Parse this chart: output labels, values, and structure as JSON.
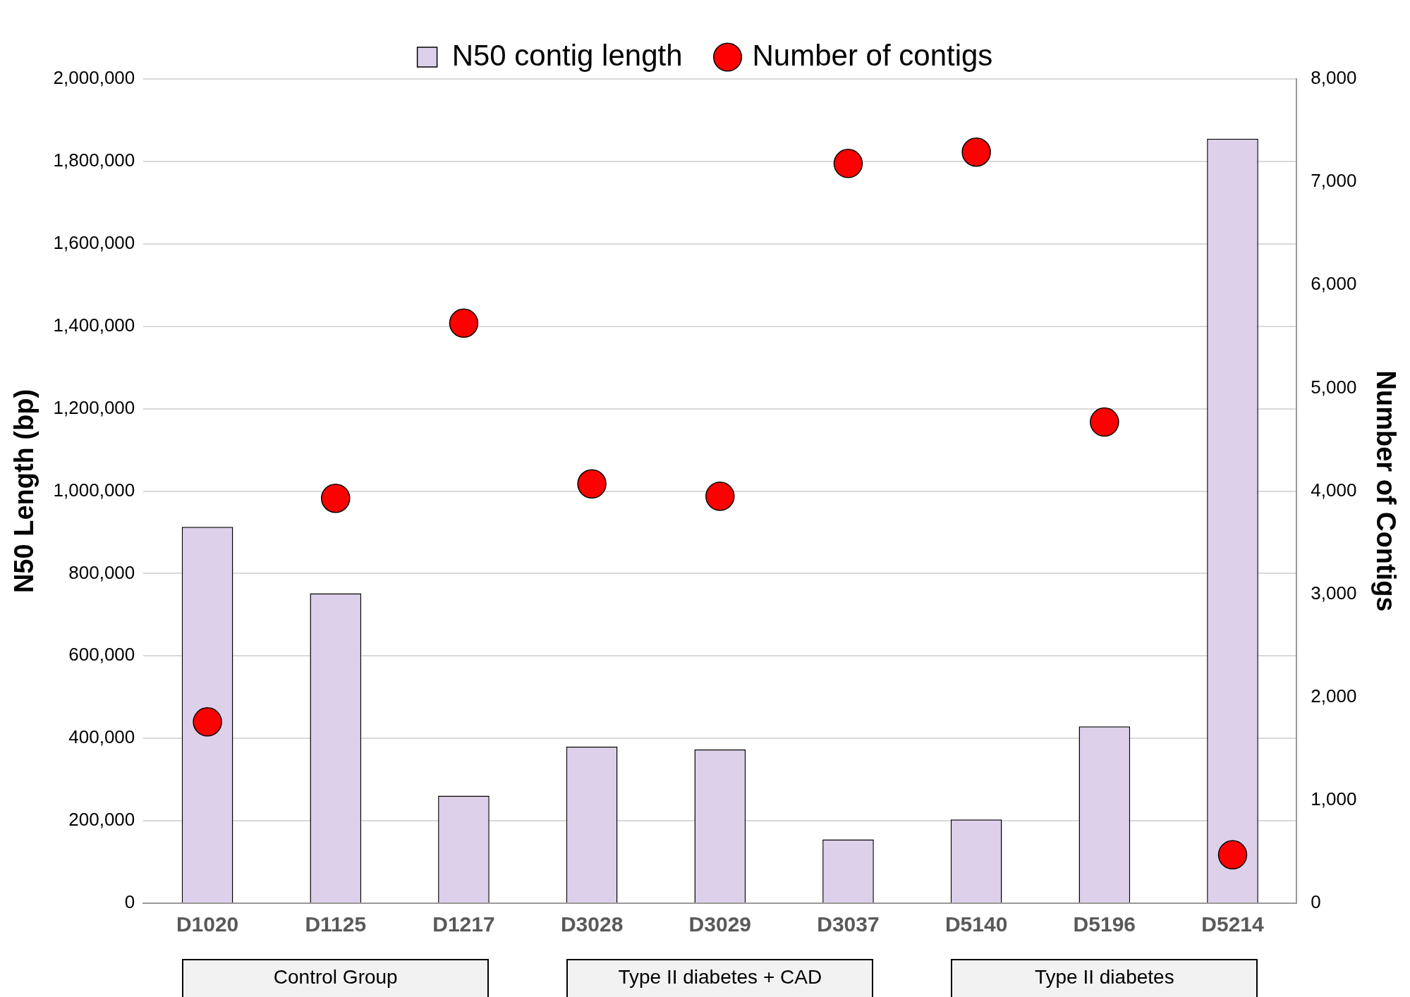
{
  "chart_data": {
    "type": "bar",
    "categories": [
      "D1020",
      "D1125",
      "D1217",
      "D3028",
      "D3029",
      "D3037",
      "D5140",
      "D5196",
      "D5214"
    ],
    "ylabel": "N50 Length (bp)",
    "y2label": "Number of Contigs",
    "ylim": [
      0,
      2000000
    ],
    "yticks": [
      {
        "value": 0,
        "label": "0"
      },
      {
        "value": 200000,
        "label": "200,000"
      },
      {
        "value": 400000,
        "label": "400,000"
      },
      {
        "value": 600000,
        "label": "600,000"
      },
      {
        "value": 800000,
        "label": "800,000"
      },
      {
        "value": 1000000,
        "label": "1,000,000"
      },
      {
        "value": 1200000,
        "label": "1,200,000"
      },
      {
        "value": 1400000,
        "label": "1,400,000"
      },
      {
        "value": 1600000,
        "label": "1,600,000"
      },
      {
        "value": 1800000,
        "label": "1,800,000"
      },
      {
        "value": 2000000,
        "label": "2,000,000"
      }
    ],
    "y2lim": [
      0,
      8000
    ],
    "y2ticks": [
      {
        "value": 0,
        "label": "0"
      },
      {
        "value": 1000,
        "label": "1,000"
      },
      {
        "value": 2000,
        "label": "2,000"
      },
      {
        "value": 3000,
        "label": "3,000"
      },
      {
        "value": 4000,
        "label": "4,000"
      },
      {
        "value": 5000,
        "label": "5,000"
      },
      {
        "value": 6000,
        "label": "6,000"
      },
      {
        "value": 7000,
        "label": "7,000"
      },
      {
        "value": 8000,
        "label": "8,000"
      }
    ],
    "series": [
      {
        "name": "N50 contig length",
        "color": "#ddd0ea",
        "values": [
          913000,
          752000,
          261000,
          380000,
          373000,
          155000,
          203000,
          429000,
          1855000
        ]
      },
      {
        "name": "Number of contigs",
        "type": "scatter",
        "axis": "y2",
        "marker": "circle",
        "color": "#ff0000",
        "values": [
          1760,
          3930,
          5630,
          4070,
          3950,
          7180,
          7290,
          4670,
          470
        ]
      }
    ],
    "annotations": [
      "Control Group",
      "Type II diabetes + CAD",
      "Type II diabetes"
    ],
    "grid": "y",
    "legend": "top"
  }
}
